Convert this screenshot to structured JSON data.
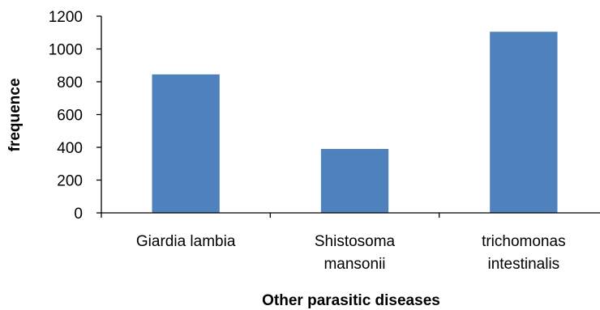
{
  "chart_data": {
    "type": "bar",
    "categories": [
      [
        "Giardia lambia"
      ],
      [
        "Shistosoma",
        "mansonii"
      ],
      [
        "trichomonas",
        "intestinalis"
      ]
    ],
    "values": [
      845,
      390,
      1105
    ],
    "xlabel": "Other parasitic diseases",
    "ylabel": "frequence",
    "ylim": [
      0,
      1200
    ],
    "yticks": [
      0,
      200,
      400,
      600,
      800,
      1000,
      1200
    ],
    "bar_color": "#4F81BD",
    "grid": false,
    "legend": "none"
  }
}
